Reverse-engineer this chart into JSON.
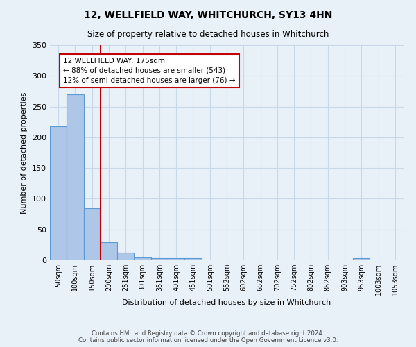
{
  "title": "12, WELLFIELD WAY, WHITCHURCH, SY13 4HN",
  "subtitle": "Size of property relative to detached houses in Whitchurch",
  "xlabel": "Distribution of detached houses by size in Whitchurch",
  "ylabel": "Number of detached properties",
  "footer": "Contains HM Land Registry data © Crown copyright and database right 2024.\nContains public sector information licensed under the Open Government Licence v3.0.",
  "bin_labels": [
    "50sqm",
    "100sqm",
    "150sqm",
    "200sqm",
    "251sqm",
    "301sqm",
    "351sqm",
    "401sqm",
    "451sqm",
    "501sqm",
    "552sqm",
    "602sqm",
    "652sqm",
    "702sqm",
    "752sqm",
    "802sqm",
    "852sqm",
    "903sqm",
    "953sqm",
    "1003sqm",
    "1053sqm"
  ],
  "bin_values": [
    218,
    270,
    85,
    29,
    12,
    5,
    3,
    3,
    3,
    0,
    0,
    0,
    0,
    0,
    0,
    0,
    0,
    0,
    3,
    0,
    0
  ],
  "bar_color": "#aec6e8",
  "bar_edge_color": "#5b9bd5",
  "grid_color": "#c8d8e8",
  "background_color": "#e8f0f8",
  "vline_x": 2.5,
  "vline_color": "#c00000",
  "annotation_line1": "12 WELLFIELD WAY: 175sqm",
  "annotation_line2": "← 88% of detached houses are smaller (543)",
  "annotation_line3": "12% of semi-detached houses are larger (76) →",
  "annotation_box_color": "#ffffff",
  "annotation_box_edge": "#c00000",
  "ylim": [
    0,
    350
  ],
  "yticks": [
    0,
    50,
    100,
    150,
    200,
    250,
    300,
    350
  ]
}
